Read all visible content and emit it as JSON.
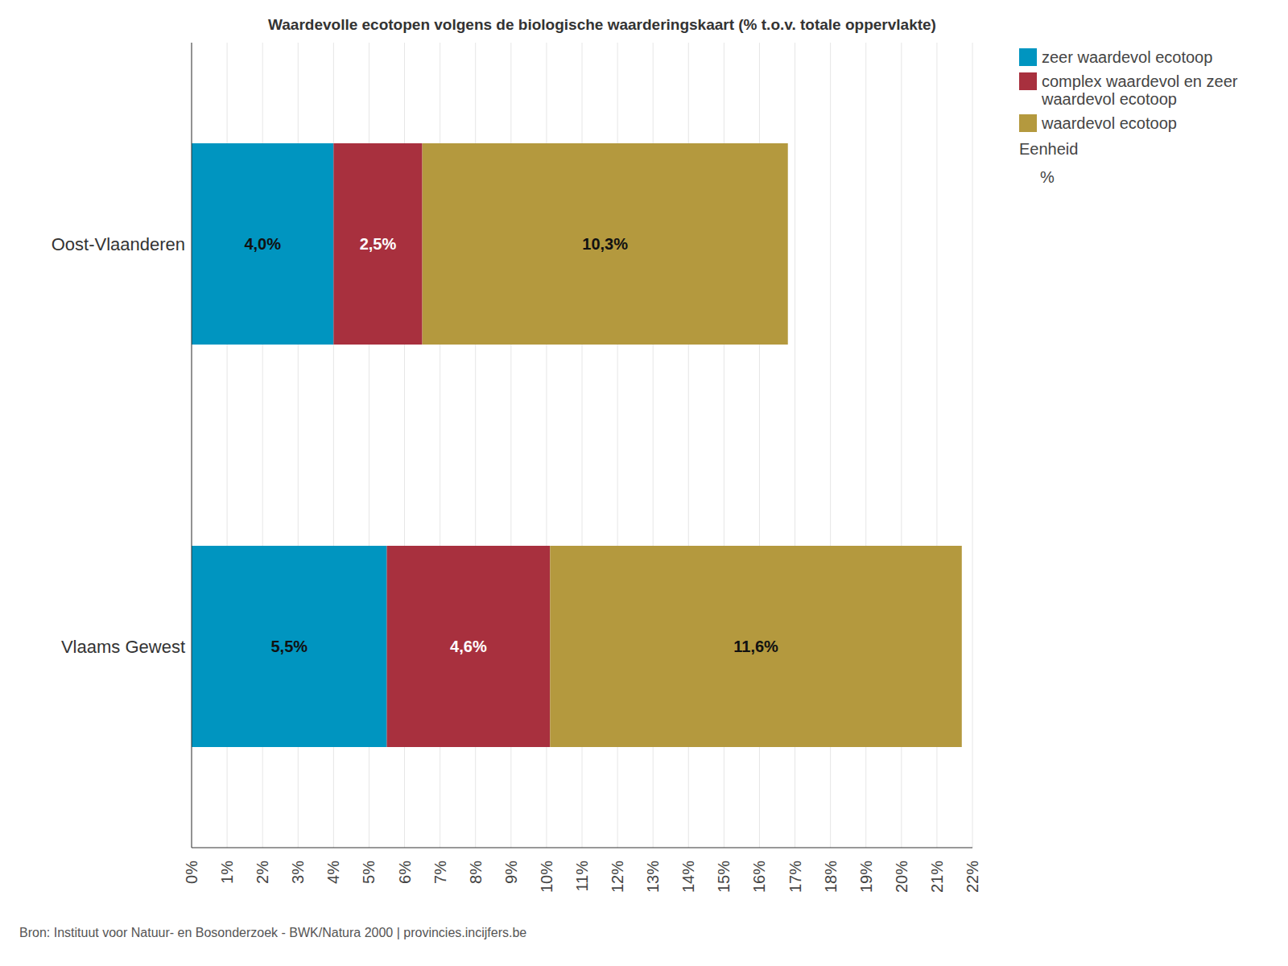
{
  "chart_data": {
    "type": "bar",
    "title": "Waardevolle ecotopen volgens de biologische waarderingskaart (% t.o.v. totale oppervlakte)",
    "orientation": "horizontal",
    "stacked": true,
    "data_labels": true,
    "grid": true,
    "legend": "top-right",
    "annotations": [
      "Eenheid",
      "%"
    ],
    "source": "Bron: Instituut voor Natuur- en Bosonderzoek - BWK/Natura 2000 | provincies.incijfers.be",
    "categories": [
      "Oost-Vlaanderen",
      "Vlaams Gewest"
    ],
    "series": [
      {
        "name": "zeer waardevol ecotoop",
        "color": "#0095c0",
        "values": [
          4.0,
          5.5
        ],
        "value_labels": [
          "4,0%",
          "5,5%"
        ]
      },
      {
        "name": "complex waardevol en zeer waardevol ecotoop",
        "color": "#a8303e",
        "values": [
          2.5,
          4.6
        ],
        "value_labels": [
          "2,5%",
          "4,6%"
        ]
      },
      {
        "name": "waardevol ecotoop",
        "color": "#b4993e",
        "values": [
          10.3,
          11.6
        ],
        "value_labels": [
          "10,3%",
          "11,6%"
        ]
      }
    ],
    "xlim": [
      0,
      22
    ],
    "xticks": [
      {
        "value": 0,
        "label": "0%"
      },
      {
        "value": 1,
        "label": "1%"
      },
      {
        "value": 2,
        "label": "2%"
      },
      {
        "value": 3,
        "label": "3%"
      },
      {
        "value": 4,
        "label": "4%"
      },
      {
        "value": 5,
        "label": "5%"
      },
      {
        "value": 6,
        "label": "6%"
      },
      {
        "value": 7,
        "label": "7%"
      },
      {
        "value": 8,
        "label": "8%"
      },
      {
        "value": 9,
        "label": "9%"
      },
      {
        "value": 10,
        "label": "10%"
      },
      {
        "value": 11,
        "label": "11%"
      },
      {
        "value": 12,
        "label": "12%"
      },
      {
        "value": 13,
        "label": "13%"
      },
      {
        "value": 14,
        "label": "14%"
      },
      {
        "value": 15,
        "label": "15%"
      },
      {
        "value": 16,
        "label": "16%"
      },
      {
        "value": 17,
        "label": "17%"
      },
      {
        "value": 18,
        "label": "18%"
      },
      {
        "value": 19,
        "label": "19%"
      },
      {
        "value": 20,
        "label": "20%"
      },
      {
        "value": 21,
        "label": "21%"
      },
      {
        "value": 22,
        "label": "22%"
      }
    ]
  }
}
